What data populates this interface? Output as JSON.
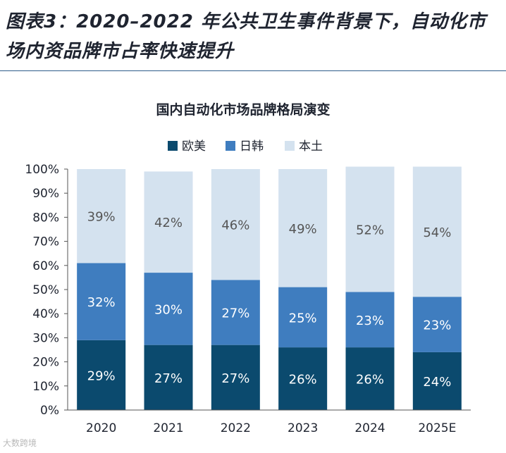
{
  "figure": {
    "title": "图表3：2020–2022 年公共卫生事件背景下，自动化市场内资品牌市占率快速提升"
  },
  "watermark": "大数跨境",
  "colors": {
    "eu_us": "#0b4a6e",
    "jp_kr": "#3f7dbf",
    "local": "#d4e2ef",
    "axis": "#333333",
    "rule": "#2d5c8a"
  },
  "chart_data": {
    "type": "bar",
    "stacked": true,
    "title": "国内自动化市场品牌格局演变",
    "categories": [
      "2020",
      "2021",
      "2022",
      "2023",
      "2024",
      "2025E"
    ],
    "series": [
      {
        "name": "欧美",
        "values": [
          29,
          27,
          27,
          26,
          26,
          24
        ],
        "labels": [
          "29%",
          "27%",
          "27%",
          "26%",
          "26%",
          "24%"
        ],
        "color": "#0b4a6e"
      },
      {
        "name": "日韩",
        "values": [
          32,
          30,
          27,
          25,
          23,
          23
        ],
        "labels": [
          "32%",
          "30%",
          "27%",
          "25%",
          "23%",
          "23%"
        ],
        "color": "#3f7dbf"
      },
      {
        "name": "本土",
        "values": [
          39,
          42,
          46,
          49,
          52,
          54
        ],
        "labels": [
          "39%",
          "42%",
          "46%",
          "49%",
          "52%",
          "54%"
        ],
        "color": "#d4e2ef"
      }
    ],
    "ylim": [
      0,
      100
    ],
    "yticks": [
      "0%",
      "10%",
      "20%",
      "30%",
      "40%",
      "50%",
      "60%",
      "70%",
      "80%",
      "90%",
      "100%"
    ],
    "xlabel": "",
    "ylabel": "",
    "legend": "top-center",
    "grid": false
  }
}
